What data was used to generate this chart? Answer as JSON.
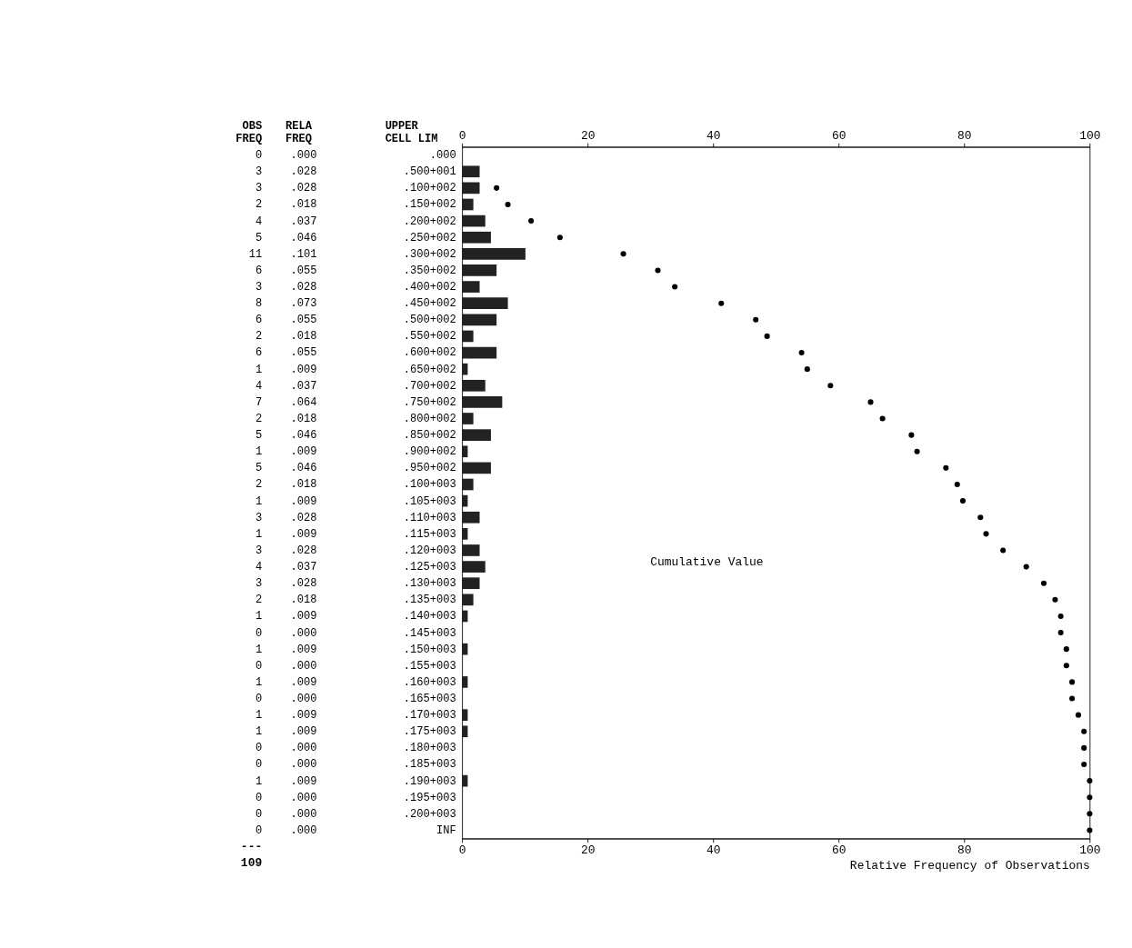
{
  "chart_data": {
    "type": "bar",
    "orientation": "horizontal",
    "xlabel": "Relative Frequency of Observations",
    "categories": [
      ".000",
      ".500+001",
      ".100+002",
      ".150+002",
      ".200+002",
      ".250+002",
      ".300+002",
      ".350+002",
      ".400+002",
      ".450+002",
      ".500+002",
      ".550+002",
      ".600+002",
      ".650+002",
      ".700+002",
      ".750+002",
      ".800+002",
      ".850+002",
      ".900+002",
      ".950+002",
      ".100+003",
      ".105+003",
      ".110+003",
      ".115+003",
      ".120+003",
      ".125+003",
      ".130+003",
      ".135+003",
      ".140+003",
      ".145+003",
      ".150+003",
      ".155+003",
      ".160+003",
      ".165+003",
      ".170+003",
      ".175+003",
      ".180+003",
      ".185+003",
      ".190+003",
      ".195+003",
      ".200+003",
      "INF"
    ],
    "series": [
      {
        "color": "#222222",
        "values": [
          0,
          2.8,
          2.8,
          1.8,
          3.7,
          4.6,
          10.1,
          5.5,
          2.8,
          7.3,
          5.5,
          1.8,
          5.5,
          0.9,
          3.7,
          6.4,
          1.8,
          4.6,
          0.9,
          4.6,
          1.8,
          0.9,
          2.8,
          0.9,
          2.8,
          3.7,
          2.8,
          1.8,
          0.9,
          0,
          0.9,
          0,
          0.9,
          0,
          0.9,
          0.9,
          0,
          0,
          0.9,
          0,
          0,
          0
        ]
      },
      {
        "type": "scatter",
        "color": "#000000",
        "marker": "circle",
        "values": [
          null,
          null,
          5.5,
          7.3,
          11.0,
          15.6,
          25.7,
          31.2,
          33.9,
          41.3,
          46.8,
          48.6,
          54.1,
          55.0,
          58.7,
          65.1,
          67.0,
          71.6,
          72.5,
          77.1,
          78.9,
          79.8,
          82.6,
          83.5,
          86.2,
          89.9,
          92.7,
          94.5,
          95.4,
          95.4,
          96.3,
          96.3,
          97.2,
          97.2,
          98.2,
          99.1,
          99.1,
          99.1,
          100,
          100,
          100,
          100
        ]
      }
    ],
    "xlim": [
      0,
      100
    ],
    "xticks": [
      0,
      20,
      40,
      60,
      80,
      100
    ],
    "x2lim": [
      0,
      100
    ],
    "x2ticks": [
      0,
      20,
      40,
      60,
      80,
      100
    ],
    "annotations": [
      "OBS FREQ",
      "RELA FREQ",
      "UPPER CELL LIM",
      "0",
      "3",
      "3",
      "2",
      "4",
      "5",
      "11",
      "6",
      "3",
      "8",
      "6",
      "2",
      "6",
      "1",
      "4",
      "7",
      "2",
      "5",
      "1",
      "5",
      "2",
      "1",
      "3",
      "1",
      "3",
      "4",
      "3",
      "2",
      "1",
      "0",
      "1",
      "0",
      "1",
      "0",
      "1",
      "1",
      "0",
      "0",
      "1",
      "0",
      "0",
      "0",
      ".000",
      ".028",
      ".028",
      ".018",
      ".037",
      ".046",
      ".101",
      ".055",
      ".028",
      ".073",
      ".055",
      ".018",
      ".055",
      ".009",
      ".037",
      ".064",
      ".018",
      ".046",
      ".009",
      ".046",
      ".018",
      ".009",
      ".028",
      ".009",
      ".028",
      ".037",
      ".028",
      ".018",
      ".009",
      ".000",
      ".009",
      ".000",
      ".009",
      ".000",
      ".009",
      ".009",
      ".000",
      ".000",
      ".009",
      ".000",
      ".000",
      ".000",
      "---",
      "109",
      "Cumulative Value"
    ],
    "grid": false
  }
}
